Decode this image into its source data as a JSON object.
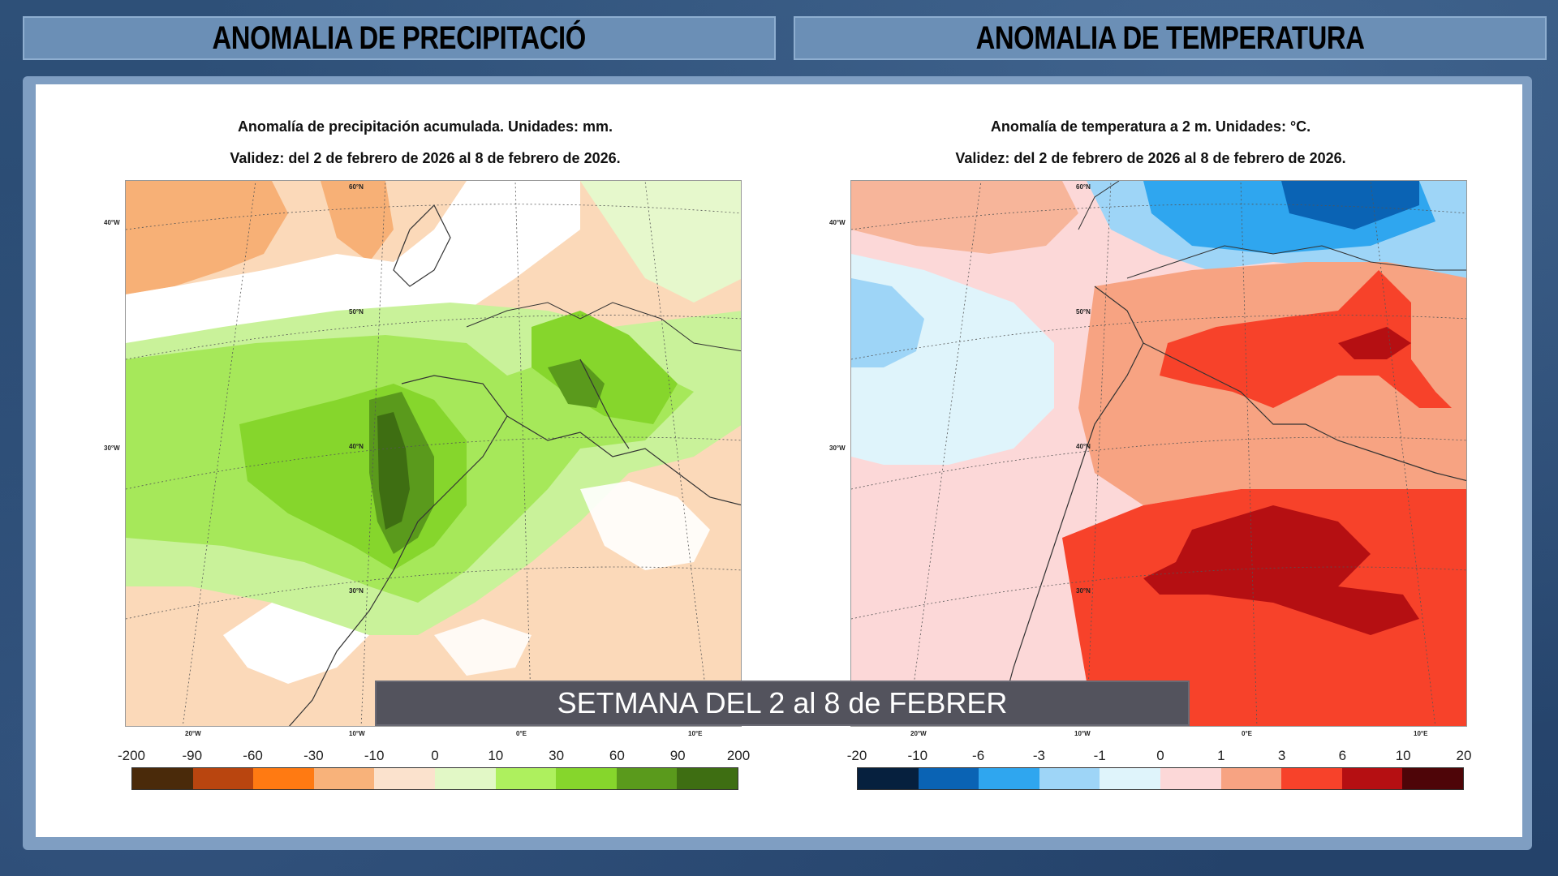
{
  "headers": {
    "left": "ANOMALIA DE PRECIPITACIÓ",
    "right": "ANOMALIA DE TEMPERATURA"
  },
  "precip_map": {
    "title_line1": "Anomalía de precipitación acumulada. Unidades: mm.",
    "title_line2": "Validez: del 2 de febrero de 2026 al 8 de febrero de 2026.",
    "lat_labels": [
      "60°N",
      "50°N",
      "40°N",
      "30°N"
    ],
    "edge_lon_labels": [
      "40°W",
      "30°W"
    ],
    "bottom_lon_labels": [
      "20°W",
      "10°W",
      "0°E",
      "10°E"
    ],
    "legend_ticks": [
      "-200",
      "-90",
      "-60",
      "-30",
      "-10",
      "0",
      "10",
      "30",
      "60",
      "90",
      "200"
    ],
    "legend_colors": [
      "#4a2a0a",
      "#b9450f",
      "#ff7a12",
      "#f8b27a",
      "#fbe2cd",
      "#e2f8c6",
      "#aef05e",
      "#86d62c",
      "#5a9a1c",
      "#3e6e12"
    ]
  },
  "temp_map": {
    "title_line1": "Anomalía de temperatura a 2 m. Unidades: °C.",
    "title_line2": "Validez: del 2 de febrero de 2026 al 8 de febrero de 2026.",
    "lat_labels": [
      "60°N",
      "50°N",
      "40°N",
      "30°N"
    ],
    "edge_lon_labels": [
      "40°W",
      "30°W"
    ],
    "bottom_lon_labels": [
      "20°W",
      "10°W",
      "0°E",
      "10°E"
    ],
    "legend_ticks": [
      "-20",
      "-10",
      "-6",
      "-3",
      "-1",
      "0",
      "1",
      "3",
      "6",
      "10",
      "20"
    ],
    "legend_colors": [
      "#06203e",
      "#0a63b4",
      "#2fa6ef",
      "#9ed5f7",
      "#dff4fb",
      "#fcd8d8",
      "#f7a382",
      "#f7422a",
      "#b50f12",
      "#4e0508"
    ]
  },
  "caption": "SETMANA DEL 2 al 8 de FEBRER",
  "colors": {
    "background": "#2b4a70",
    "header_bar": "#6b8fb6",
    "frame": "#7f9ec2",
    "caption_bar": "#53535d"
  }
}
